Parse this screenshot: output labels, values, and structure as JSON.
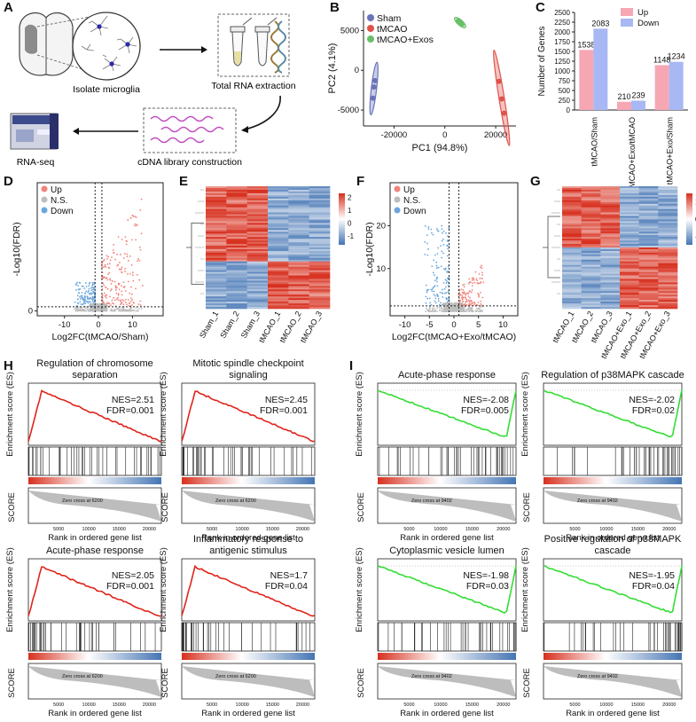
{
  "figure": {
    "panels": [
      "A",
      "B",
      "C",
      "D",
      "E",
      "F",
      "G",
      "H",
      "I"
    ]
  },
  "panel_a": {
    "isolate_label": "Isolate microglia",
    "rna_label": "Total RNA extraction",
    "cdna_label": "cDNA library construction",
    "seq_label": "RNA-seq"
  },
  "colors": {
    "up": "#f0837a",
    "down": "#6aa7dc",
    "ns": "#bdbdbd",
    "heat_high": "#d7301f",
    "heat_low": "#4575b4",
    "gsea_up": "#e0241b",
    "gsea_down": "#33dd33",
    "bar_up": "#f7a6b4",
    "bar_down": "#a8b8f4",
    "sham": "#6a74b8",
    "tmcao": "#e0524c",
    "exos": "#6abf69"
  },
  "chart_data": [
    {
      "id": "B",
      "type": "scatter",
      "xlabel": "PC1 (94.8%)",
      "ylabel": "PC2 (4.1%)",
      "xlim": [
        -32000,
        28000
      ],
      "ylim": [
        -7000,
        7500
      ],
      "xticks": [
        -20000,
        0,
        20000
      ],
      "yticks": [
        -5000,
        0,
        5000
      ],
      "legend": [
        "Sham",
        "tMCAO",
        "tMCAO+Exos"
      ],
      "series": [
        {
          "name": "Sham",
          "x": [
            -27500,
            -27900,
            -28300
          ],
          "y": [
            -1300,
            -2100,
            -3500
          ]
        },
        {
          "name": "tMCAO",
          "x": [
            21300,
            22400,
            23300
          ],
          "y": [
            -1400,
            -3600,
            -5400
          ]
        },
        {
          "name": "tMCAO+Exos",
          "x": [
            5300,
            6000,
            6700
          ],
          "y": [
            6200,
            6000,
            5800
          ]
        }
      ]
    },
    {
      "id": "C",
      "type": "bar",
      "ylabel": "Number of Genes",
      "ylim": [
        0,
        2500
      ],
      "yticks": [
        0,
        250,
        500,
        750,
        1000,
        1250,
        1500,
        1750,
        2000,
        2250,
        2500
      ],
      "categories": [
        "tMCAO/Sham",
        "tMCAO+Exo/tMCAO",
        "tMCAO+Exo/Sham"
      ],
      "legend": [
        "Up",
        "Down"
      ],
      "series": [
        {
          "name": "Up",
          "values": [
            1538,
            210,
            1148
          ]
        },
        {
          "name": "Down",
          "values": [
            2083,
            239,
            1234
          ]
        }
      ]
    },
    {
      "id": "D",
      "type": "scatter",
      "xlabel": "Log2FC(tMCAO/Sham)",
      "ylabel": "-Log10(FDR)",
      "xticks": [
        -10,
        0,
        10
      ],
      "yticks": [
        0
      ],
      "legend": [
        "Up",
        "N.S.",
        "Down"
      ]
    },
    {
      "id": "E",
      "type": "heatmap",
      "columns": [
        "Sham_1",
        "Sham_2",
        "Sham_3",
        "tMCAO_1",
        "tMCAO_2",
        "tMCAO_3"
      ],
      "scale_ticks": [
        "2",
        "1",
        "0",
        "-1"
      ]
    },
    {
      "id": "F",
      "type": "scatter",
      "xlabel": "Log2FC(tMCAO+Exo/tMCAO)",
      "ylabel": "-Log10(FDR)",
      "xticks": [
        -10,
        -5,
        0,
        5,
        10
      ],
      "yticks": [
        10,
        20
      ],
      "legend": [
        "Up",
        "N.S.",
        "Down"
      ]
    },
    {
      "id": "G",
      "type": "heatmap",
      "columns": [
        "tMCAO_1",
        "tMCAO_2",
        "tMCAO_3",
        "tMCAO+Exo_1",
        "tMCAO+Exo_2",
        "tMCAO+Exo_3"
      ],
      "scale_ticks": [
        "1",
        "0",
        "-1"
      ]
    },
    {
      "id": "H",
      "type": "line",
      "ylabel": "Enrichment score (ES)",
      "score_label": "SCORE",
      "xlabel": "Rank in ordered gene list",
      "xticks": [
        5000,
        10000,
        15000,
        20000
      ],
      "zero_cross": "Zero cross at 6200",
      "plots": [
        {
          "title": "Regulation of chromosome separation",
          "nes": "NES=2.51",
          "fdr": "FDR=0.001",
          "direction": "up"
        },
        {
          "title": "Mitotic spindle checkpoint signaling",
          "nes": "NES=2.45",
          "fdr": "FDR=0.001",
          "direction": "up"
        },
        {
          "title": "Acute-phase response",
          "nes": "NES=2.05",
          "fdr": "FDR=0.001",
          "direction": "up"
        },
        {
          "title": "Inflammatory response to antigenic stimulus",
          "nes": "NES=1.7",
          "fdr": "FDR=0.04",
          "direction": "up"
        }
      ]
    },
    {
      "id": "I",
      "type": "line",
      "ylabel": "Enrichment score (ES)",
      "score_label": "SCORE",
      "xlabel": "Rank in ordered gene list",
      "xticks": [
        5000,
        10000,
        15000,
        20000
      ],
      "zero_cross": "Zero cross at 9402",
      "plots": [
        {
          "title": "Acute-phase response",
          "nes": "NES=-2.08",
          "fdr": "FDR=0.005",
          "direction": "down"
        },
        {
          "title": "Regulation of p38MAPK cascade",
          "nes": "NES=-2.02",
          "fdr": "FDR=0.02",
          "direction": "down"
        },
        {
          "title": "Cytoplasmic vesicle lumen",
          "nes": "NES=-1.98",
          "fdr": "FDR=0.03",
          "direction": "down"
        },
        {
          "title": "Positive regulation of p38MAPK cascade",
          "nes": "NES=-1.95",
          "fdr": "FDR=0.04",
          "direction": "down"
        }
      ]
    }
  ]
}
